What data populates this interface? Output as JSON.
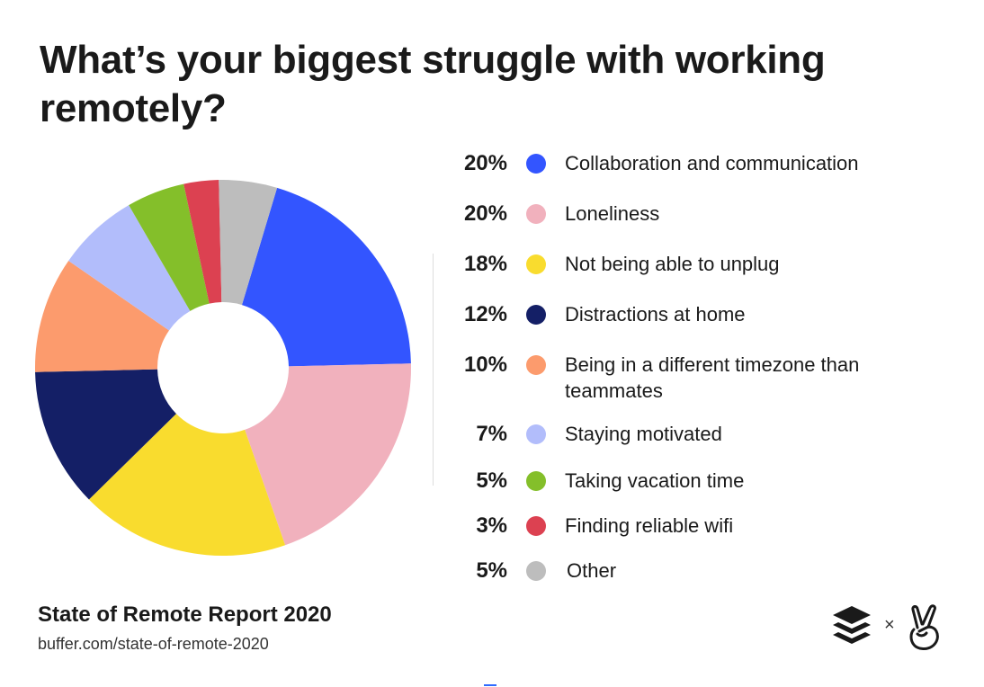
{
  "title": "What’s your biggest struggle with working remotely?",
  "footer": {
    "report_title": "State of Remote Report 2020",
    "url": "buffer.com/state-of-remote-2020",
    "separator": "×"
  },
  "logos": [
    "buffer-stack-icon",
    "peace-hand-icon"
  ],
  "chart_data": {
    "type": "pie",
    "donut": true,
    "title": "What’s your biggest struggle with working remotely?",
    "legend_position": "right",
    "slices": [
      {
        "label": "Collaboration and communication",
        "value": 20,
        "display": "20%",
        "color": "#3355ff"
      },
      {
        "label": "Loneliness",
        "value": 20,
        "display": "20%",
        "color": "#f1b1bd"
      },
      {
        "label": "Not being able to unplug",
        "value": 18,
        "display": "18%",
        "color": "#f9dc2e"
      },
      {
        "label": "Distractions at home",
        "value": 12,
        "display": "12%",
        "color": "#141f66"
      },
      {
        "label": "Being in a different timezone than teammates",
        "value": 10,
        "display": "10%",
        "color": "#fc9b6d"
      },
      {
        "label": "Staying motivated",
        "value": 7,
        "display": "7%",
        "color": "#b2bdfb"
      },
      {
        "label": "Taking vacation time",
        "value": 5,
        "display": "5%",
        "color": "#84bf2a"
      },
      {
        "label": "Finding reliable wifi",
        "value": 3,
        "display": "3%",
        "color": "#dc4151"
      },
      {
        "label": "Other",
        "value": 5,
        "display": "5%",
        "color": "#bdbdbd"
      }
    ]
  }
}
